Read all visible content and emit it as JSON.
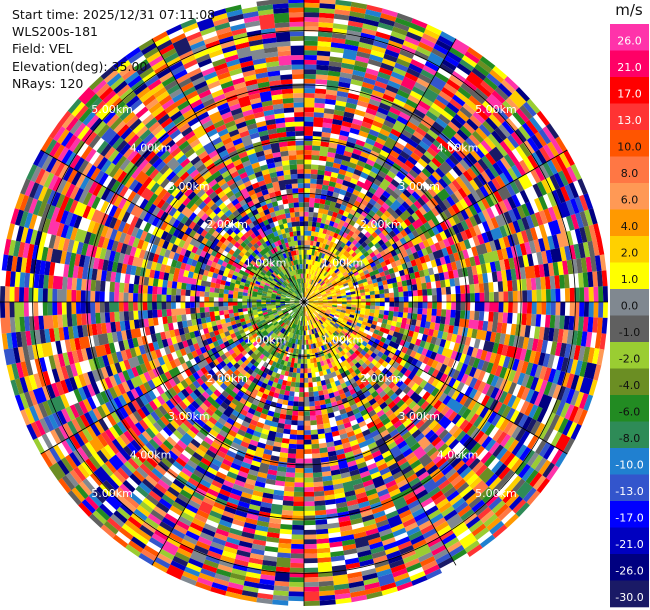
{
  "header": {
    "start_time": "Start time: 2025/12/31 07:11:08",
    "site": "WLS200s-181",
    "field": "Field: VEL",
    "elevation": "Elevation(deg): 35.00",
    "nrays": "NRays: 120"
  },
  "chart_data": {
    "type": "heatmap",
    "projection": "polar-ppi",
    "n_rays": 120,
    "range_rings_km": [
      1,
      2,
      3,
      4,
      5
    ],
    "ring_labels": [
      "1.00km",
      "2.00km",
      "3.00km",
      "4.00km",
      "5.00km"
    ],
    "spokes": 12,
    "near_field_pattern": "green/teal negative velocities on the west side, yellow/orange positive velocities on the east side; noisy random velocities beyond ~1.5 km",
    "colorbar": {
      "unit": "m/s",
      "tick_labels": [
        "26.0",
        "21.0",
        "17.0",
        "13.0",
        "10.0",
        "8.0",
        "6.0",
        "4.0",
        "2.0",
        "1.0",
        "0.0",
        "-1.0",
        "-2.0",
        "-4.0",
        "-6.0",
        "-8.0",
        "-10.0",
        "-13.0",
        "-17.0",
        "-21.0",
        "-26.0",
        "-30.0"
      ],
      "colors": [
        "#ff33aa",
        "#ff0066",
        "#ff0000",
        "#ff3333",
        "#ff5500",
        "#ff7744",
        "#ff9955",
        "#ff9900",
        "#ffd000",
        "#ffff00",
        "#808890",
        "#606060",
        "#9acd32",
        "#6b8e23",
        "#228b22",
        "#2e8b57",
        "#2080d0",
        "#3355cc",
        "#0000ff",
        "#0000c0",
        "#000080",
        "#1a1a66"
      ]
    }
  }
}
